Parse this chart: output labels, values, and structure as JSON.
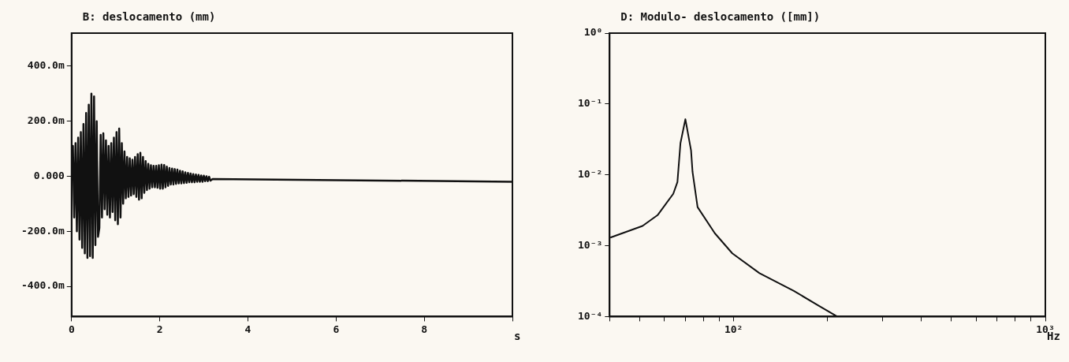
{
  "chart_data": [
    {
      "type": "line",
      "title": "B: deslocamento (mm)",
      "xlabel": "s",
      "marker": "none",
      "x": [
        0,
        0.03,
        0.06,
        0.09,
        0.12,
        0.15,
        0.18,
        0.21,
        0.24,
        0.27,
        0.3,
        0.33,
        0.36,
        0.39,
        0.42,
        0.45,
        0.48,
        0.51,
        0.54,
        0.57,
        0.6,
        0.63,
        0.66,
        0.69,
        0.72,
        0.75,
        0.78,
        0.81,
        0.84,
        0.87,
        0.9,
        0.93,
        0.96,
        0.99,
        1.02,
        1.05,
        1.08,
        1.11,
        1.14,
        1.17,
        1.2,
        1.23,
        1.26,
        1.29,
        1.32,
        1.35,
        1.38,
        1.41,
        1.44,
        1.47,
        1.5,
        1.53,
        1.56,
        1.59,
        1.62,
        1.65,
        1.68,
        1.71,
        1.74,
        1.77,
        1.8,
        1.83,
        1.86,
        1.89,
        1.92,
        1.95,
        1.98,
        2.01,
        2.04,
        2.07,
        2.1,
        2.13,
        2.16,
        2.19,
        2.22,
        2.25,
        2.28,
        2.31,
        2.34,
        2.37,
        2.4,
        2.43,
        2.46,
        2.49,
        2.52,
        2.55,
        2.58,
        2.61,
        2.64,
        2.67,
        2.7,
        2.73,
        2.76,
        2.79,
        2.82,
        2.85,
        2.88,
        2.91,
        2.94,
        2.97,
        3,
        3.03,
        3.06,
        3.09,
        3.12,
        3.15,
        3.2,
        10
      ],
      "series": [
        {
          "color": "#111111",
          "values": [
            0,
            110,
            -150,
            120,
            -200,
            140,
            -230,
            160,
            -260,
            190,
            -280,
            230,
            -297,
            260,
            -290,
            300,
            -297,
            290,
            -250,
            200,
            -220,
            -188,
            150,
            -150,
            156,
            -120,
            130,
            -140,
            110,
            -150,
            120,
            -130,
            140,
            -160,
            160,
            -174,
            173,
            -150,
            120,
            -100,
            90,
            -80,
            70,
            -75,
            65,
            -70,
            60,
            -65,
            70,
            -75,
            80,
            -85,
            85,
            -80,
            70,
            -60,
            55,
            -50,
            45,
            -45,
            40,
            -40,
            38,
            -40,
            38,
            -42,
            40,
            -45,
            42,
            -45,
            41,
            -40,
            35,
            -35,
            30,
            -30,
            28,
            -30,
            26,
            -28,
            24,
            -26,
            20,
            -26,
            18,
            -25,
            14,
            -24,
            12,
            -22,
            10,
            -22,
            8,
            -22,
            6,
            -20,
            5,
            -20,
            3,
            -20,
            2,
            -18,
            0,
            -18,
            -2,
            -16,
            -10,
            -20
          ]
        }
      ],
      "xlim": [
        0,
        10
      ],
      "xticks": [
        0,
        2,
        4,
        6,
        8,
        {
          "value": 10,
          "label": null
        }
      ],
      "ylim": [
        -510,
        520
      ],
      "yticks": [
        {
          "value": 400,
          "label": "400.0m"
        },
        {
          "value": 200,
          "label": "200.0m"
        },
        {
          "value": 0,
          "label": "0.000"
        },
        {
          "value": -200,
          "label": "-200.0m"
        },
        {
          "value": -400,
          "label": "-400.0m"
        }
      ]
    },
    {
      "type": "line",
      "title": "D: Modulo- deslocamento ([mm])",
      "xlabel": "Hz",
      "marker": "none",
      "log": "xy",
      "x": [
        40.2,
        51,
        57,
        64,
        66,
        67.5,
        70,
        73,
        73.8,
        76.6,
        87,
        99,
        121,
        156,
        186,
        215
      ],
      "series": [
        {
          "color": "#111111",
          "values": [
            0.0013,
            0.0019,
            0.0027,
            0.0054,
            0.0079,
            0.028,
            0.061,
            0.022,
            0.011,
            0.0035,
            0.0015,
            0.00078,
            0.00041,
            0.00023,
            0.000145,
            0.0001
          ]
        }
      ],
      "xlim": [
        40,
        1000
      ],
      "xticks": [
        {
          "value": 40,
          "label": null
        },
        {
          "value": 50,
          "label": null
        },
        {
          "value": 60,
          "label": null
        },
        {
          "value": 70,
          "label": null
        },
        {
          "value": 80,
          "label": null
        },
        {
          "value": 90,
          "label": null
        },
        {
          "value": 100,
          "label": "10²"
        },
        {
          "value": 200,
          "label": null
        },
        {
          "value": 300,
          "label": null
        },
        {
          "value": 400,
          "label": null
        },
        {
          "value": 500,
          "label": null
        },
        {
          "value": 600,
          "label": null
        },
        {
          "value": 700,
          "label": null
        },
        {
          "value": 800,
          "label": null
        },
        {
          "value": 900,
          "label": null
        },
        {
          "value": 1000,
          "label": "10³"
        }
      ],
      "ylim": [
        0.0001,
        1
      ],
      "yticks": [
        {
          "value": 1,
          "label": "10⁰"
        },
        {
          "value": 0.1,
          "label": "10⁻¹"
        },
        {
          "value": 0.01,
          "label": "10⁻²"
        },
        {
          "value": 0.001,
          "label": "10⁻³"
        },
        {
          "value": 0.0001,
          "label": "10⁻⁴"
        }
      ]
    }
  ]
}
